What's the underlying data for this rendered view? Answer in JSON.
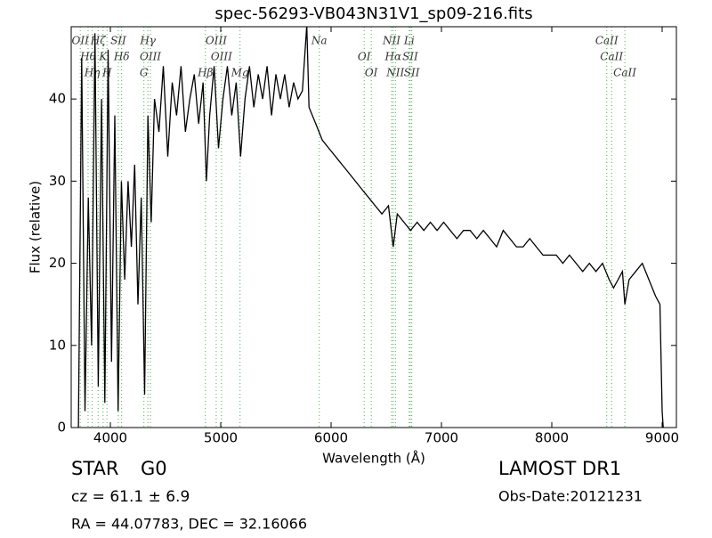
{
  "chart_data": {
    "type": "line",
    "title": "spec-56293-VB043N31V1_sp09-216.fits",
    "x_label": "Wavelength (Å)",
    "y_label": "Flux (relative)",
    "color": "#000000",
    "line_marker_color": "#4caf50",
    "xlim": [
      3645,
      9129
    ],
    "ylim": [
      0,
      48.8
    ],
    "xticks": [
      4000,
      5000,
      6000,
      7000,
      8000,
      9000
    ],
    "yticks": [
      0,
      10,
      20,
      30,
      40
    ],
    "x": [
      3710,
      3740,
      3770,
      3800,
      3830,
      3860,
      3890,
      3920,
      3950,
      3980,
      4010,
      4040,
      4070,
      4100,
      4130,
      4160,
      4190,
      4220,
      4250,
      4280,
      4310,
      4340,
      4370,
      4400,
      4440,
      4480,
      4520,
      4560,
      4600,
      4640,
      4680,
      4720,
      4760,
      4800,
      4840,
      4870,
      4900,
      4940,
      4980,
      5020,
      5060,
      5100,
      5140,
      5180,
      5220,
      5260,
      5300,
      5340,
      5380,
      5420,
      5460,
      5500,
      5540,
      5580,
      5620,
      5660,
      5700,
      5740,
      5780,
      5800,
      5860,
      5920,
      5980,
      6040,
      6100,
      6160,
      6220,
      6280,
      6340,
      6400,
      6460,
      6520,
      6563,
      6600,
      6660,
      6720,
      6780,
      6840,
      6900,
      6960,
      7020,
      7080,
      7140,
      7200,
      7260,
      7320,
      7380,
      7440,
      7500,
      7560,
      7620,
      7680,
      7740,
      7800,
      7860,
      7920,
      7980,
      8040,
      8100,
      8160,
      8220,
      8280,
      8340,
      8400,
      8460,
      8520,
      8560,
      8600,
      8640,
      8662,
      8700,
      8760,
      8820,
      8880,
      8940,
      8980,
      9000,
      9010
    ],
    "values": [
      0,
      45,
      2,
      28,
      10,
      48,
      5,
      40,
      3,
      46,
      8,
      38,
      2,
      30,
      18,
      30,
      22,
      32,
      15,
      28,
      4,
      38,
      25,
      40,
      36,
      44,
      33,
      42,
      38,
      44,
      36,
      40,
      43,
      37,
      42,
      30,
      38,
      44,
      34,
      40,
      44,
      38,
      42,
      33,
      40,
      44,
      39,
      43,
      40,
      44,
      38,
      43,
      40,
      43,
      39,
      42,
      40,
      41,
      49,
      39,
      37,
      35,
      34,
      33,
      32,
      31,
      30,
      29,
      28,
      27,
      26,
      27,
      22,
      26,
      25,
      24,
      25,
      24,
      25,
      24,
      25,
      24,
      23,
      24,
      24,
      23,
      24,
      23,
      22,
      24,
      23,
      22,
      22,
      23,
      22,
      21,
      21,
      21,
      20,
      21,
      20,
      19,
      20,
      19,
      20,
      18,
      17,
      18,
      19,
      15,
      18,
      19,
      20,
      18,
      16,
      15,
      2,
      0
    ],
    "spectral_lines": [
      {
        "label": "OII",
        "x": 3727
      },
      {
        "label": "Hθ",
        "x": 3798
      },
      {
        "label": "Hη",
        "x": 3835
      },
      {
        "label": "Hζ",
        "x": 3889
      },
      {
        "label": "K",
        "x": 3934
      },
      {
        "label": "H",
        "x": 3969
      },
      {
        "label": "SII",
        "x": 4072
      },
      {
        "label": "Hδ",
        "x": 4102
      },
      {
        "label": "G",
        "x": 4304
      },
      {
        "label": "Hγ",
        "x": 4340
      },
      {
        "label": "OIII",
        "x": 4363
      },
      {
        "label": "Hβ",
        "x": 4861
      },
      {
        "label": "OIII",
        "x": 4959
      },
      {
        "label": "OIII",
        "x": 5007
      },
      {
        "label": "Mg",
        "x": 5175
      },
      {
        "label": "Na",
        "x": 5893
      },
      {
        "label": "OI",
        "x": 6300
      },
      {
        "label": "OI",
        "x": 6364
      },
      {
        "label": "NII",
        "x": 6548
      },
      {
        "label": "Hα",
        "x": 6563
      },
      {
        "label": "NII",
        "x": 6583
      },
      {
        "label": "Li",
        "x": 6708
      },
      {
        "label": "SII",
        "x": 6717
      },
      {
        "label": "SII",
        "x": 6731
      },
      {
        "label": "CaII",
        "x": 8498
      },
      {
        "label": "CaII",
        "x": 8542
      },
      {
        "label": "CaII",
        "x": 8662
      }
    ]
  },
  "footer": {
    "class": "STAR",
    "subclass": "G0",
    "redshift": "cz = 61.1 ± 6.9",
    "coordinates": "RA = 44.07783, DEC = 32.16066",
    "survey": "LAMOST DR1",
    "obs_date": "Obs-Date:20121231"
  }
}
